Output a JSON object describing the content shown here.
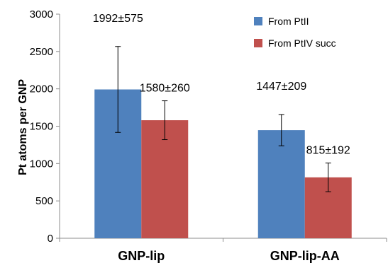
{
  "chart_data": {
    "type": "bar",
    "categories": [
      "GNP-lip",
      "GNP-lip-AA"
    ],
    "series": [
      {
        "name": "From PtII",
        "color": "#4f81bd",
        "values": [
          1992,
          1447
        ],
        "errors": [
          575,
          209
        ],
        "labels": [
          "1992±575",
          "1447±209"
        ]
      },
      {
        "name": "From PtIV succ",
        "color": "#c0504d",
        "values": [
          1580,
          815
        ],
        "errors": [
          260,
          192
        ],
        "labels": [
          "1580±260",
          "815±192"
        ]
      }
    ],
    "xlabel": "",
    "ylabel": "Pt atoms per GNP",
    "ylim": [
      0,
      3000
    ],
    "yticks": [
      0,
      500,
      1000,
      1500,
      2000,
      2500,
      3000
    ],
    "grid": false,
    "legend_position": "top-right",
    "error_bars": true
  }
}
